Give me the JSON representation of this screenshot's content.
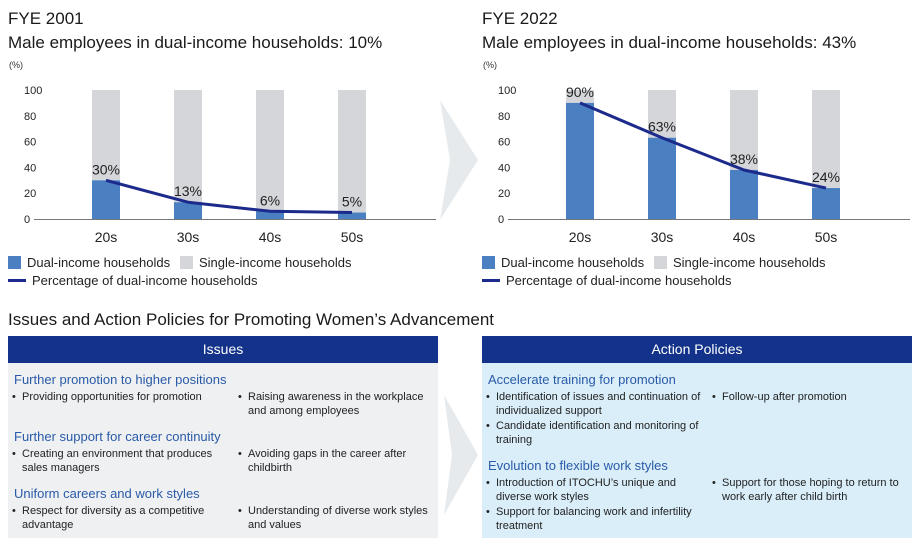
{
  "chart_data": [
    {
      "type": "bar",
      "title": "FYE 2001",
      "subtitle": "Male employees in dual-income households: 10%",
      "unit_label": "(%)",
      "categories": [
        "20s",
        "30s",
        "40s",
        "50s"
      ],
      "yticks": [
        "100",
        "80",
        "60",
        "40",
        "20",
        "0"
      ],
      "ylim": [
        0,
        100
      ],
      "stacked": true,
      "series": [
        {
          "name": "Dual-income households",
          "values": [
            30,
            13,
            6,
            5
          ],
          "color": "#4a7fc1"
        },
        {
          "name": "Single-income households",
          "values": [
            70,
            87,
            94,
            95
          ],
          "color": "#d4d6d9"
        }
      ],
      "line": {
        "name": "Percentage of dual-income households",
        "values": [
          30,
          13,
          6,
          5
        ],
        "color": "#1c2a8c"
      },
      "data_labels": [
        "30%",
        "13%",
        "6%",
        "5%"
      ],
      "legend": [
        "Dual-income households",
        "Single-income households",
        "Percentage of dual-income households"
      ]
    },
    {
      "type": "bar",
      "title": "FYE 2022",
      "subtitle": "Male employees in dual-income households: 43%",
      "unit_label": "(%)",
      "categories": [
        "20s",
        "30s",
        "40s",
        "50s"
      ],
      "yticks": [
        "100",
        "80",
        "60",
        "40",
        "20",
        "0"
      ],
      "ylim": [
        0,
        100
      ],
      "stacked": true,
      "series": [
        {
          "name": "Dual-income households",
          "values": [
            90,
            63,
            38,
            24
          ],
          "color": "#4a7fc1"
        },
        {
          "name": "Single-income households",
          "values": [
            10,
            37,
            62,
            76
          ],
          "color": "#d4d6d9"
        }
      ],
      "line": {
        "name": "Percentage of dual-income households",
        "values": [
          90,
          63,
          38,
          24
        ],
        "color": "#1c2a8c"
      },
      "data_labels": [
        "90%",
        "63%",
        "38%",
        "24%"
      ],
      "legend": [
        "Dual-income households",
        "Single-income households",
        "Percentage of dual-income households"
      ]
    }
  ],
  "section_title": "Issues and Action Policies for Promoting Women’s Advancement",
  "issues": {
    "header": "Issues",
    "groups": [
      {
        "title": "Further promotion to higher positions",
        "left": [
          "Providing opportunities for promotion"
        ],
        "right": [
          "Raising awareness in the workplace and among employees"
        ]
      },
      {
        "title": "Further support for career continuity",
        "left": [
          "Creating an environment that produces sales managers"
        ],
        "right": [
          "Avoiding gaps in the career after childbirth"
        ]
      },
      {
        "title": "Uniform careers and work styles",
        "left": [
          "Respect for diversity as a competitive advantage"
        ],
        "right": [
          "Understanding of diverse work styles and values"
        ]
      }
    ]
  },
  "actions": {
    "header": "Action Policies",
    "groups": [
      {
        "title": "Accelerate training for promotion",
        "left": [
          "Identification of issues and continuation of individualized support",
          "Candidate identification and monitoring of training"
        ],
        "right": [
          "Follow-up after promotion"
        ]
      },
      {
        "title": "Evolution to flexible work styles",
        "left": [
          "Introduction of ITOCHU’s unique and diverse work styles",
          "Support for balancing work and infertility treatment"
        ],
        "right": [
          "Support for those hoping to return to work early after child birth"
        ]
      }
    ]
  },
  "colors": {
    "panel_header": "#13338b",
    "issues_bg": "#eef0f2",
    "actions_bg": "#d9eef9",
    "arrow": "#e6eaed",
    "group_title": "#2a5aa8"
  }
}
